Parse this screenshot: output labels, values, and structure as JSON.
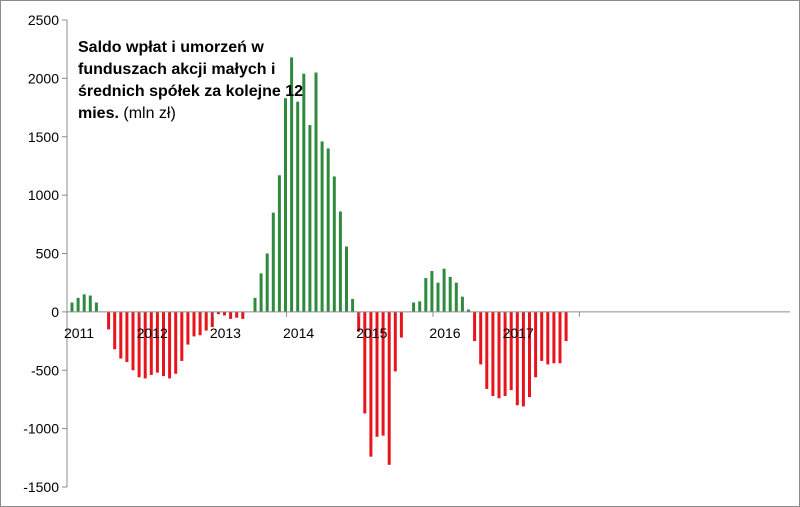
{
  "chart_data": {
    "type": "bar",
    "title": "Saldo wpłat i umorzeń w funduszach akcji małych i średnich spółek za kolejne 12 mies.",
    "title_unit": "(mln zł)",
    "ylim": [
      -1500,
      2500
    ],
    "yticks": [
      -1500,
      -1000,
      -500,
      0,
      500,
      1000,
      1500,
      2000,
      2500
    ],
    "ytick_labels": [
      "-1500",
      "-1000",
      "-500",
      "0",
      "500",
      "1000",
      "1500",
      "2000",
      "2500"
    ],
    "xtick_labels": [
      "2011",
      "2012",
      "2013",
      "2014",
      "2015",
      "2016",
      "2017"
    ],
    "grid": false,
    "colors": {
      "positive": "#2e8b3e",
      "negative": "#e8141c",
      "axis": "#8c8c8c"
    },
    "series": [
      {
        "values": [
          80,
          120,
          150,
          140,
          80,
          0,
          -150,
          -320,
          -400,
          -430,
          -500,
          -560,
          -570,
          -540,
          -520,
          -550,
          -570,
          -530,
          -420,
          -280,
          -210,
          -200,
          -160,
          -130,
          -20,
          -30,
          -60,
          -50,
          -60,
          0,
          120,
          330,
          500,
          850,
          1170,
          1830,
          2180,
          1800,
          2040,
          1600,
          2050,
          1460,
          1400,
          1160,
          860,
          560,
          110,
          -170,
          -870,
          -1240,
          -1070,
          -1060,
          -1310,
          -510,
          -220,
          0,
          80,
          90,
          290,
          350,
          250,
          370,
          300,
          250,
          130,
          20,
          -250,
          -450,
          -660,
          -720,
          -740,
          -720,
          -670,
          -800,
          -810,
          -730,
          -560,
          -420,
          -450,
          -440,
          -440,
          -250
        ]
      }
    ]
  }
}
